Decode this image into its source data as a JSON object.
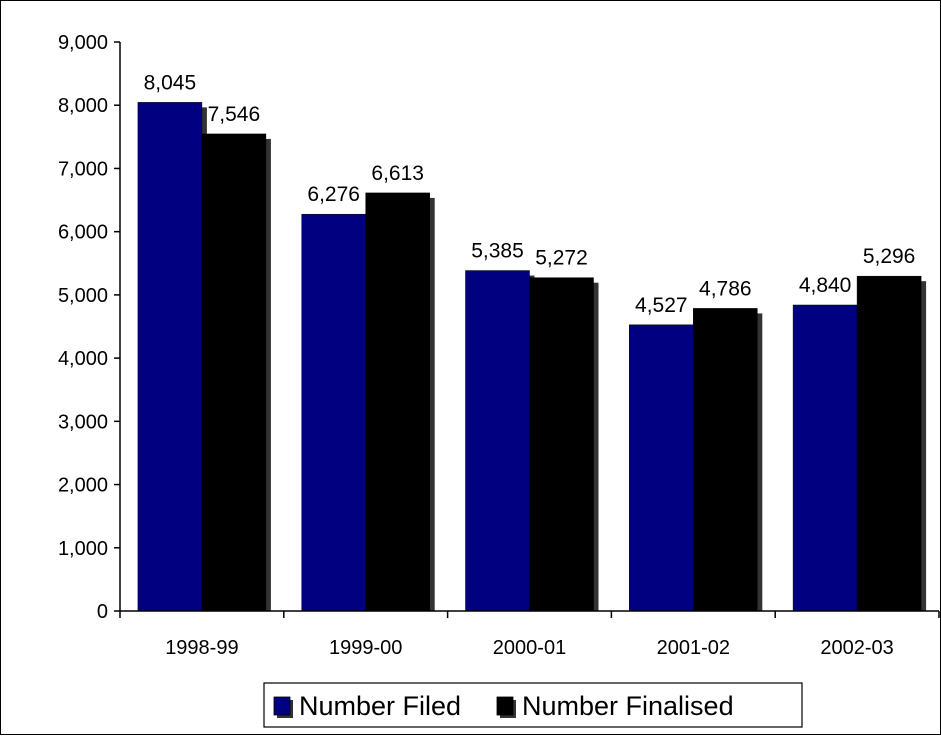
{
  "chart_data": {
    "type": "bar",
    "title": "",
    "xlabel": "",
    "ylabel": "",
    "categories": [
      "1998-99",
      "1999-00",
      "2000-01",
      "2001-02",
      "2002-03"
    ],
    "series": [
      {
        "name": "Number Filed",
        "values": [
          8045,
          6276,
          5385,
          4527,
          4840
        ],
        "labels": [
          "8,045",
          "6,276",
          "5,385",
          "4,527",
          "4,840"
        ],
        "color": "#000080"
      },
      {
        "name": "Number Finalised",
        "values": [
          7546,
          6613,
          5272,
          4786,
          5296
        ],
        "labels": [
          "7,546",
          "6,613",
          "5,272",
          "4,786",
          "5,296"
        ],
        "color": "#000000"
      }
    ],
    "ylim": [
      0,
      9000
    ],
    "yticks": [
      0,
      1000,
      2000,
      3000,
      4000,
      5000,
      6000,
      7000,
      8000,
      9000
    ],
    "ytick_labels": [
      "0",
      "1,000",
      "2,000",
      "3,000",
      "4,000",
      "5,000",
      "6,000",
      "7,000",
      "8,000",
      "9,000"
    ],
    "grid": false,
    "legend_position": "bottom",
    "shadow_color": "#333333"
  }
}
